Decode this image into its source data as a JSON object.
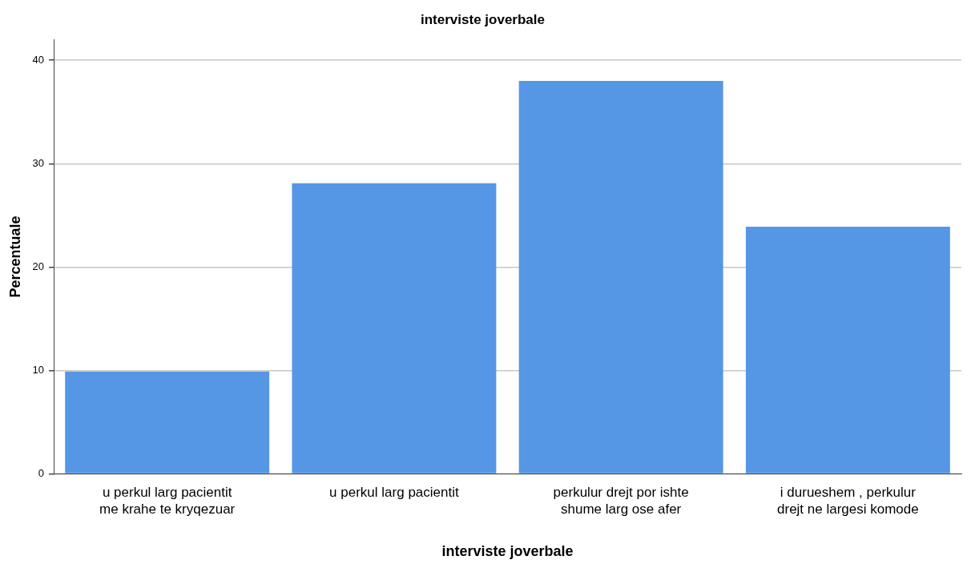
{
  "chart_data": {
    "type": "bar",
    "title": "interviste joverbale",
    "xlabel": "interviste joverbale",
    "ylabel": "Percentuale",
    "categories": [
      "u perkul larg pacientit\nme krahe te kryqezuar",
      "u perkul larg pacientit",
      "perkulur drejt por ishte\nshume larg ose afer",
      "i durueshem , perkulur\ndrejt ne largesi komode"
    ],
    "values": [
      9.9,
      28.1,
      38.0,
      23.9
    ],
    "color": "#5596e5",
    "ylim": [
      0,
      42
    ],
    "yticks": [
      0,
      10,
      20,
      30,
      40
    ],
    "grid": "y",
    "legend": false
  }
}
